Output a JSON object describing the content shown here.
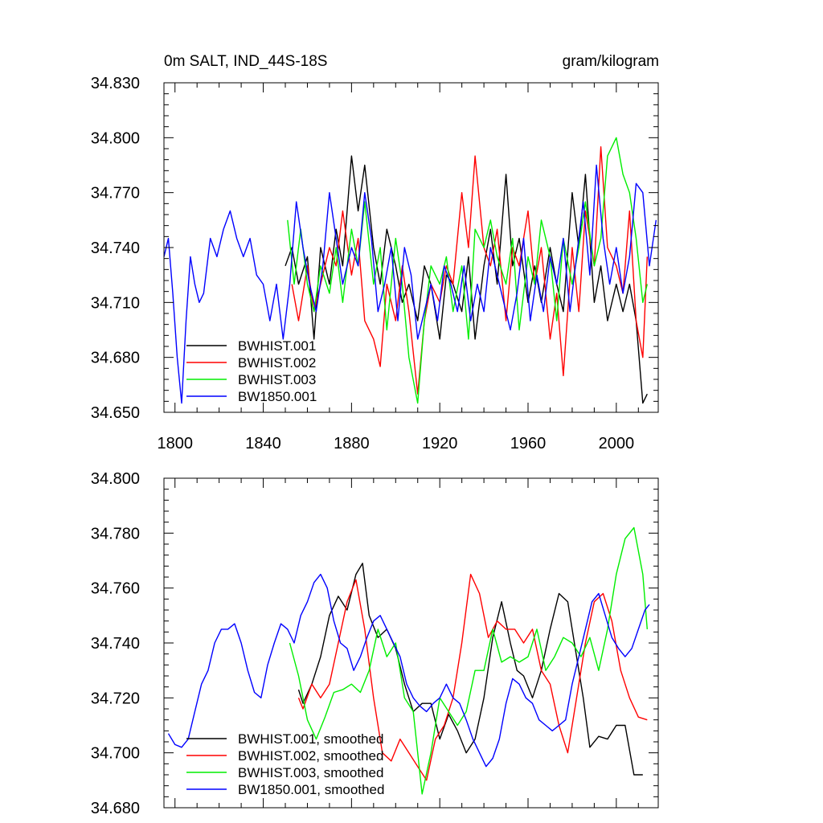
{
  "chart_data": [
    {
      "type": "line",
      "title_left": "0m SALT, IND_44S-18S",
      "title_right": "gram/kilogram",
      "xlim": [
        1795,
        2019
      ],
      "ylim": [
        34.65,
        34.83
      ],
      "y_ticks": [
        34.65,
        34.68,
        34.71,
        34.74,
        34.77,
        34.8,
        34.83
      ],
      "y_tick_labels": [
        "34.650",
        "34.680",
        "34.710",
        "34.740",
        "34.770",
        "34.800",
        "34.830"
      ],
      "x_ticks": [
        1800,
        1840,
        1880,
        1920,
        1960,
        2000
      ],
      "x_tick_labels": [
        "1800",
        "1840",
        "1880",
        "1920",
        "1960",
        "2000"
      ],
      "legend_position": "bottom-left",
      "series": [
        {
          "name": "BWHIST.001",
          "color": "#000000",
          "x": [
            1850,
            1853,
            1856,
            1860,
            1863,
            1866,
            1870,
            1873,
            1876,
            1880,
            1883,
            1886,
            1890,
            1893,
            1896,
            1900,
            1903,
            1906,
            1910,
            1913,
            1916,
            1920,
            1923,
            1926,
            1930,
            1933,
            1936,
            1940,
            1943,
            1946,
            1950,
            1953,
            1956,
            1960,
            1963,
            1966,
            1970,
            1973,
            1976,
            1980,
            1983,
            1986,
            1990,
            1993,
            1996,
            2000,
            2003,
            2006,
            2009,
            2012,
            2014
          ],
          "y": [
            34.73,
            34.74,
            34.72,
            34.735,
            34.69,
            34.74,
            34.72,
            34.75,
            34.73,
            34.79,
            34.76,
            34.785,
            34.74,
            34.72,
            34.75,
            34.73,
            34.71,
            34.72,
            34.7,
            34.73,
            34.72,
            34.69,
            34.725,
            34.72,
            34.705,
            34.735,
            34.69,
            34.73,
            34.75,
            34.72,
            34.78,
            34.73,
            34.745,
            34.71,
            34.73,
            34.71,
            34.74,
            34.72,
            34.705,
            34.77,
            34.74,
            34.78,
            34.71,
            34.73,
            34.7,
            34.72,
            34.705,
            34.72,
            34.7,
            34.655,
            34.66
          ]
        },
        {
          "name": "BWHIST.002",
          "color": "#ff0000",
          "x": [
            1853,
            1856,
            1860,
            1863,
            1866,
            1870,
            1873,
            1876,
            1880,
            1883,
            1886,
            1890,
            1893,
            1896,
            1900,
            1903,
            1906,
            1910,
            1913,
            1916,
            1920,
            1923,
            1926,
            1930,
            1933,
            1936,
            1940,
            1943,
            1946,
            1950,
            1953,
            1956,
            1960,
            1963,
            1966,
            1970,
            1973,
            1976,
            1980,
            1983,
            1986,
            1990,
            1993,
            1996,
            2000,
            2003,
            2006,
            2009,
            2012,
            2014
          ],
          "y": [
            34.72,
            34.7,
            34.73,
            34.705,
            34.72,
            34.74,
            34.73,
            34.76,
            34.725,
            34.745,
            34.7,
            34.69,
            34.675,
            34.72,
            34.7,
            34.73,
            34.705,
            34.66,
            34.7,
            34.72,
            34.71,
            34.73,
            34.72,
            34.77,
            34.74,
            34.79,
            34.74,
            34.73,
            34.75,
            34.7,
            34.74,
            34.73,
            34.76,
            34.72,
            34.74,
            34.69,
            34.715,
            34.67,
            34.74,
            34.705,
            34.76,
            34.73,
            34.795,
            34.74,
            34.73,
            34.715,
            34.76,
            34.7,
            34.68,
            34.735
          ]
        },
        {
          "name": "BWHIST.003",
          "color": "#00ee00",
          "x": [
            1851,
            1854,
            1857,
            1860,
            1863,
            1866,
            1870,
            1873,
            1876,
            1880,
            1883,
            1886,
            1890,
            1893,
            1896,
            1900,
            1903,
            1906,
            1910,
            1913,
            1916,
            1920,
            1923,
            1926,
            1930,
            1933,
            1936,
            1940,
            1943,
            1946,
            1950,
            1953,
            1956,
            1960,
            1963,
            1966,
            1970,
            1973,
            1976,
            1980,
            1983,
            1986,
            1990,
            1993,
            1996,
            2000,
            2003,
            2006,
            2009,
            2012,
            2014
          ],
          "y": [
            34.755,
            34.72,
            34.75,
            34.72,
            34.705,
            34.73,
            34.715,
            34.74,
            34.71,
            34.75,
            34.73,
            34.765,
            34.72,
            34.74,
            34.695,
            34.745,
            34.72,
            34.68,
            34.655,
            34.7,
            34.73,
            34.72,
            34.735,
            34.705,
            34.73,
            34.69,
            34.75,
            34.74,
            34.755,
            34.735,
            34.72,
            34.745,
            34.695,
            34.735,
            34.72,
            34.755,
            34.735,
            34.7,
            34.745,
            34.72,
            34.74,
            34.765,
            34.73,
            34.745,
            34.79,
            34.8,
            34.78,
            34.77,
            34.745,
            34.71,
            34.72
          ]
        },
        {
          "name": "BW1850.001",
          "color": "#0000ff",
          "x": [
            1795,
            1797,
            1799,
            1801,
            1803,
            1805,
            1807,
            1809,
            1811,
            1813,
            1816,
            1819,
            1822,
            1825,
            1828,
            1831,
            1834,
            1837,
            1840,
            1843,
            1846,
            1849,
            1852,
            1855,
            1858,
            1861,
            1864,
            1867,
            1870,
            1873,
            1876,
            1880,
            1883,
            1886,
            1889,
            1892,
            1895,
            1898,
            1901,
            1904,
            1907,
            1910,
            1913,
            1916,
            1919,
            1922,
            1925,
            1928,
            1931,
            1934,
            1937,
            1940,
            1943,
            1946,
            1949,
            1952,
            1955,
            1958,
            1961,
            1964,
            1967,
            1970,
            1973,
            1976,
            1979,
            1982,
            1985,
            1988,
            1991,
            1994,
            1997,
            2000,
            2003,
            2006,
            2009,
            2012,
            2015,
            2018
          ],
          "y": [
            34.735,
            34.745,
            34.715,
            34.68,
            34.655,
            34.7,
            34.735,
            34.72,
            34.71,
            34.715,
            34.745,
            34.735,
            34.75,
            34.76,
            34.745,
            34.735,
            34.745,
            34.725,
            34.72,
            34.7,
            34.72,
            34.69,
            34.72,
            34.765,
            34.74,
            34.72,
            34.705,
            34.73,
            34.77,
            34.745,
            34.72,
            34.74,
            34.73,
            34.77,
            34.745,
            34.705,
            34.72,
            34.74,
            34.7,
            34.74,
            34.725,
            34.69,
            34.705,
            34.72,
            34.7,
            34.73,
            34.72,
            34.705,
            34.73,
            34.7,
            34.72,
            34.705,
            34.74,
            34.725,
            34.71,
            34.695,
            34.715,
            34.745,
            34.7,
            34.725,
            34.705,
            34.735,
            34.72,
            34.745,
            34.705,
            34.735,
            34.765,
            34.725,
            34.785,
            34.745,
            34.72,
            34.74,
            34.715,
            34.735,
            34.775,
            34.77,
            34.73,
            34.755
          ]
        }
      ]
    },
    {
      "type": "line",
      "xlim": [
        1795,
        2019
      ],
      "ylim": [
        34.68,
        34.8
      ],
      "y_ticks": [
        34.68,
        34.7,
        34.72,
        34.74,
        34.76,
        34.78,
        34.8
      ],
      "y_tick_labels": [
        "34.680",
        "34.700",
        "34.720",
        "34.740",
        "34.760",
        "34.780",
        "34.800"
      ],
      "x_ticks": [
        1800,
        1840,
        1880,
        1920,
        1960,
        2000
      ],
      "legend_position": "bottom-left",
      "series": [
        {
          "name": "BWHIST.001, smoothed",
          "color": "#000000",
          "x": [
            1856,
            1858,
            1862,
            1866,
            1870,
            1874,
            1878,
            1882,
            1885,
            1888,
            1892,
            1896,
            1900,
            1904,
            1908,
            1912,
            1916,
            1920,
            1924,
            1928,
            1932,
            1936,
            1940,
            1944,
            1948,
            1952,
            1955,
            1958,
            1962,
            1966,
            1970,
            1974,
            1978,
            1982,
            1985,
            1988,
            1992,
            1996,
            2000,
            2004,
            2008,
            2012
          ],
          "y": [
            34.723,
            34.718,
            34.725,
            34.735,
            34.75,
            34.757,
            34.752,
            34.765,
            34.769,
            34.75,
            34.742,
            34.745,
            34.738,
            34.725,
            34.715,
            34.718,
            34.718,
            34.705,
            34.714,
            34.708,
            34.7,
            34.705,
            34.72,
            34.742,
            34.755,
            34.74,
            34.73,
            34.728,
            34.72,
            34.73,
            34.745,
            34.758,
            34.755,
            34.735,
            34.72,
            34.702,
            34.706,
            34.705,
            34.71,
            34.71,
            34.692,
            34.692
          ]
        },
        {
          "name": "BWHIST.002, smoothed",
          "color": "#ff0000",
          "x": [
            1856,
            1858,
            1862,
            1866,
            1870,
            1874,
            1878,
            1882,
            1886,
            1890,
            1894,
            1898,
            1902,
            1906,
            1910,
            1914,
            1918,
            1922,
            1926,
            1930,
            1934,
            1938,
            1942,
            1946,
            1950,
            1954,
            1958,
            1962,
            1966,
            1970,
            1974,
            1978,
            1982,
            1986,
            1990,
            1994,
            1998,
            2002,
            2006,
            2010,
            2014
          ],
          "y": [
            34.72,
            34.716,
            34.725,
            34.72,
            34.725,
            34.74,
            34.755,
            34.763,
            34.745,
            34.72,
            34.7,
            34.697,
            34.705,
            34.7,
            34.695,
            34.69,
            34.705,
            34.71,
            34.72,
            34.74,
            34.765,
            34.758,
            34.742,
            34.748,
            34.745,
            34.745,
            34.74,
            34.745,
            34.73,
            34.725,
            34.71,
            34.7,
            34.72,
            34.74,
            34.755,
            34.758,
            34.748,
            34.73,
            34.72,
            34.713,
            34.712
          ]
        },
        {
          "name": "BWHIST.003, smoothed",
          "color": "#00ee00",
          "x": [
            1852,
            1856,
            1860,
            1864,
            1868,
            1872,
            1876,
            1880,
            1884,
            1888,
            1892,
            1896,
            1900,
            1904,
            1908,
            1912,
            1916,
            1920,
            1924,
            1928,
            1932,
            1936,
            1940,
            1944,
            1948,
            1952,
            1956,
            1960,
            1964,
            1968,
            1972,
            1976,
            1980,
            1984,
            1988,
            1992,
            1996,
            2000,
            2004,
            2008,
            2012,
            2014
          ],
          "y": [
            34.74,
            34.728,
            34.712,
            34.705,
            34.713,
            34.722,
            34.723,
            34.725,
            34.722,
            34.73,
            34.745,
            34.735,
            34.74,
            34.72,
            34.715,
            34.685,
            34.7,
            34.72,
            34.715,
            34.71,
            34.715,
            34.73,
            34.73,
            34.745,
            34.733,
            34.735,
            34.733,
            34.735,
            34.745,
            34.73,
            34.735,
            34.742,
            34.74,
            34.735,
            34.742,
            34.73,
            34.745,
            34.765,
            34.778,
            34.782,
            34.765,
            34.745
          ]
        },
        {
          "name": "BW1850.001, smoothed",
          "color": "#0000ff",
          "x": [
            1797,
            1800,
            1803,
            1806,
            1809,
            1812,
            1815,
            1818,
            1821,
            1824,
            1827,
            1830,
            1833,
            1836,
            1839,
            1842,
            1845,
            1848,
            1851,
            1854,
            1857,
            1860,
            1863,
            1866,
            1869,
            1872,
            1875,
            1878,
            1881,
            1884,
            1887,
            1890,
            1893,
            1896,
            1899,
            1902,
            1905,
            1908,
            1911,
            1914,
            1917,
            1920,
            1923,
            1926,
            1929,
            1932,
            1935,
            1938,
            1941,
            1944,
            1947,
            1950,
            1953,
            1956,
            1959,
            1962,
            1965,
            1968,
            1971,
            1974,
            1977,
            1980,
            1983,
            1986,
            1989,
            1992,
            1995,
            1998,
            2001,
            2004,
            2007,
            2010,
            2013,
            2015
          ],
          "y": [
            34.707,
            34.703,
            34.702,
            34.705,
            34.715,
            34.725,
            34.73,
            34.74,
            34.745,
            34.745,
            34.747,
            34.74,
            34.73,
            34.722,
            34.72,
            34.732,
            34.74,
            34.747,
            34.745,
            34.74,
            34.75,
            34.755,
            34.762,
            34.765,
            34.76,
            34.748,
            34.74,
            34.738,
            34.73,
            34.735,
            34.742,
            34.748,
            34.75,
            34.745,
            34.74,
            34.735,
            34.725,
            34.72,
            34.717,
            34.715,
            34.718,
            34.72,
            34.725,
            34.72,
            34.718,
            34.712,
            34.705,
            34.7,
            34.695,
            34.698,
            34.705,
            34.718,
            34.727,
            34.725,
            34.72,
            34.718,
            34.712,
            34.71,
            34.708,
            34.71,
            34.712,
            34.725,
            34.735,
            34.745,
            34.755,
            34.758,
            34.75,
            34.742,
            34.738,
            34.735,
            34.738,
            34.745,
            34.752,
            34.754
          ]
        }
      ]
    }
  ]
}
